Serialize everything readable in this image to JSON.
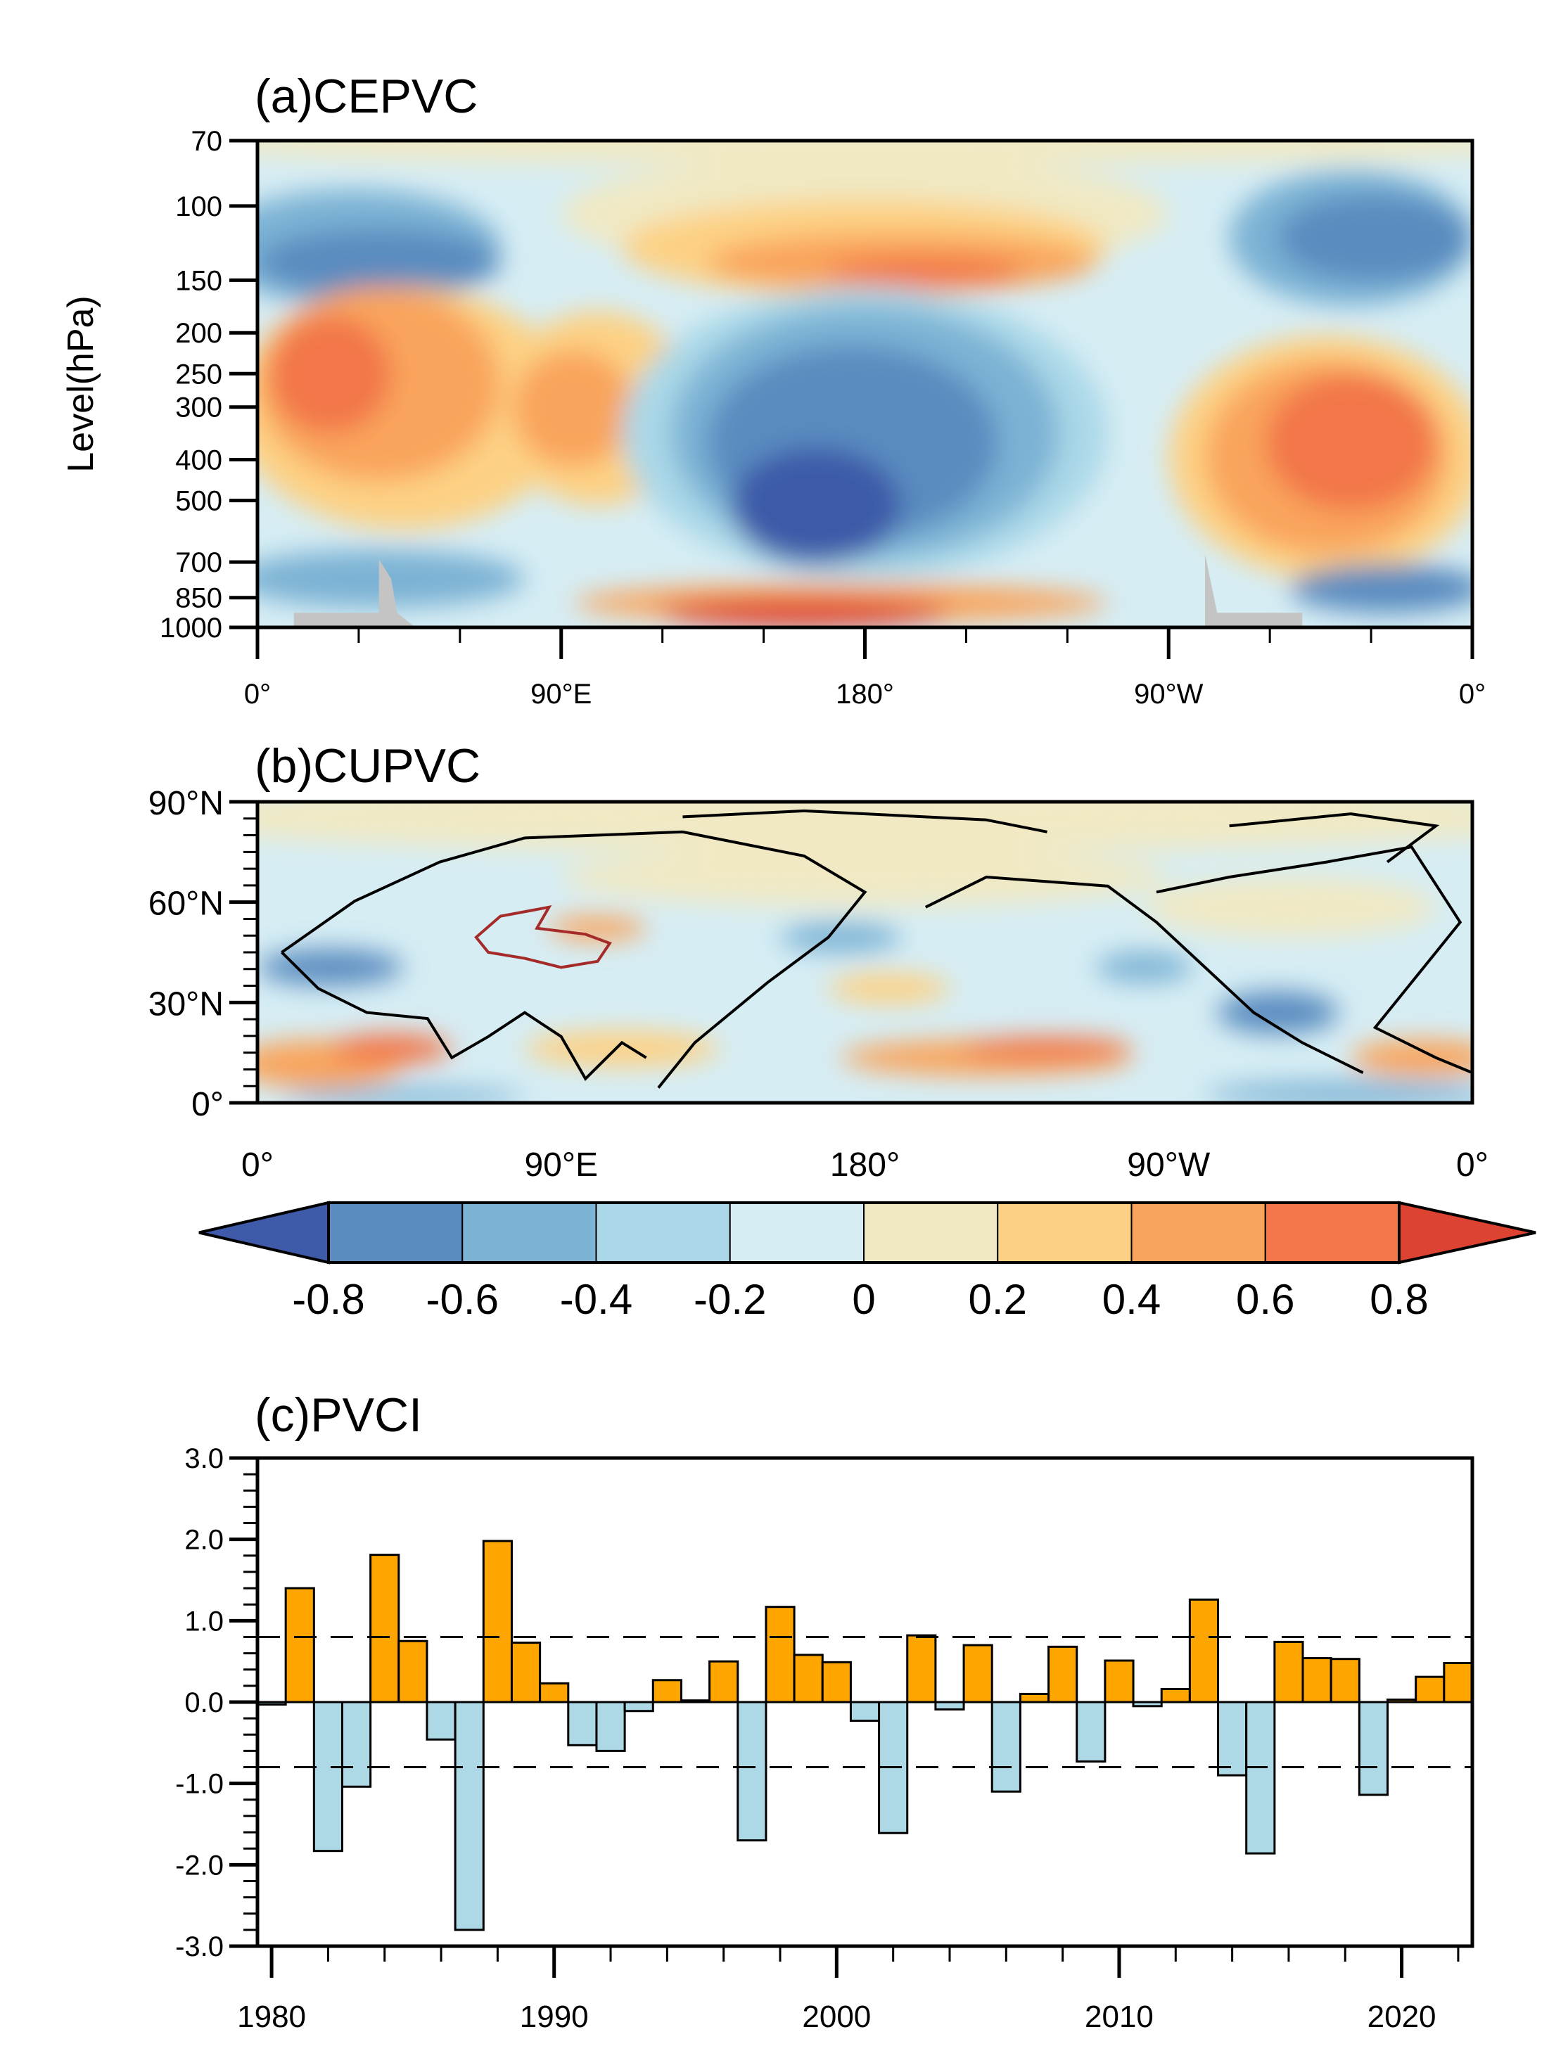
{
  "colors": {
    "levels": [
      "#3e5aa8",
      "#5a8cc0",
      "#7cb2d4",
      "#aad8e8",
      "#d6edf4",
      "#f0e9c4",
      "#fdd184",
      "#f9a45c",
      "#f2764a",
      "#de4230"
    ],
    "positive_bar": "#ffa500",
    "negative_bar": "#add8e6",
    "topography": "#c4c4c4",
    "tibetan_plateau_outline": "#a52a2a"
  },
  "panel_a": {
    "title": "(a)CEPVC",
    "ylabel": "Level(hPa)",
    "y_ticks": [
      "70",
      "100",
      "150",
      "200",
      "250",
      "300",
      "400",
      "500",
      "700",
      "850",
      "1000"
    ],
    "y_tick_values": [
      70,
      100,
      150,
      200,
      250,
      300,
      400,
      500,
      700,
      850,
      1000
    ],
    "x_ticks": [
      "0°",
      "90°E",
      "180°",
      "90°W",
      "0°"
    ]
  },
  "panel_b": {
    "title": "(b)CUPVC",
    "y_ticks": [
      "90°N",
      "60°N",
      "30°N",
      "0°"
    ],
    "x_ticks": [
      "0°",
      "90°E",
      "180°",
      "90°W",
      "0°"
    ]
  },
  "colorbar": {
    "labels": [
      "-0.8",
      "-0.6",
      "-0.4",
      "-0.2",
      "0",
      "0.2",
      "0.4",
      "0.6",
      "0.8"
    ]
  },
  "chart_data": {
    "type": "bar",
    "title": "(c)PVCI",
    "xlabel": "",
    "ylabel": "",
    "ylim": [
      -3.0,
      3.0
    ],
    "xlim": [
      1979.5,
      2022.5
    ],
    "y_ticks": [
      "3.0",
      "2.0",
      "1.0",
      "0.0",
      "-1.0",
      "-2.0",
      "-3.0"
    ],
    "y_tick_values": [
      3,
      2,
      1,
      0,
      -1,
      -2,
      -3
    ],
    "x_ticks": [
      "1980",
      "1990",
      "2000",
      "2010",
      "2020"
    ],
    "x_tick_values": [
      1980,
      1990,
      2000,
      2010,
      2020
    ],
    "reference_lines": [
      0.8,
      -0.8
    ],
    "x": [
      1980,
      1981,
      1982,
      1983,
      1984,
      1985,
      1986,
      1987,
      1988,
      1989,
      1990,
      1991,
      1992,
      1993,
      1994,
      1995,
      1996,
      1997,
      1998,
      1999,
      2000,
      2001,
      2002,
      2003,
      2004,
      2005,
      2006,
      2007,
      2008,
      2009,
      2010,
      2011,
      2012,
      2013,
      2014,
      2015,
      2016,
      2017,
      2018,
      2019,
      2020,
      2021,
      2022
    ],
    "values": [
      -0.03,
      1.4,
      -1.83,
      -1.04,
      1.81,
      0.75,
      -0.46,
      -2.8,
      1.98,
      0.73,
      0.23,
      -0.53,
      -0.6,
      -0.11,
      0.27,
      0.02,
      0.5,
      -1.7,
      1.17,
      0.58,
      0.49,
      -0.23,
      -1.61,
      0.82,
      -0.09,
      0.7,
      -1.1,
      0.1,
      0.68,
      -0.73,
      0.51,
      -0.05,
      0.16,
      1.26,
      -0.9,
      -1.86,
      0.74,
      0.54,
      0.53,
      -1.14,
      0.03,
      0.31,
      0.48
    ]
  }
}
